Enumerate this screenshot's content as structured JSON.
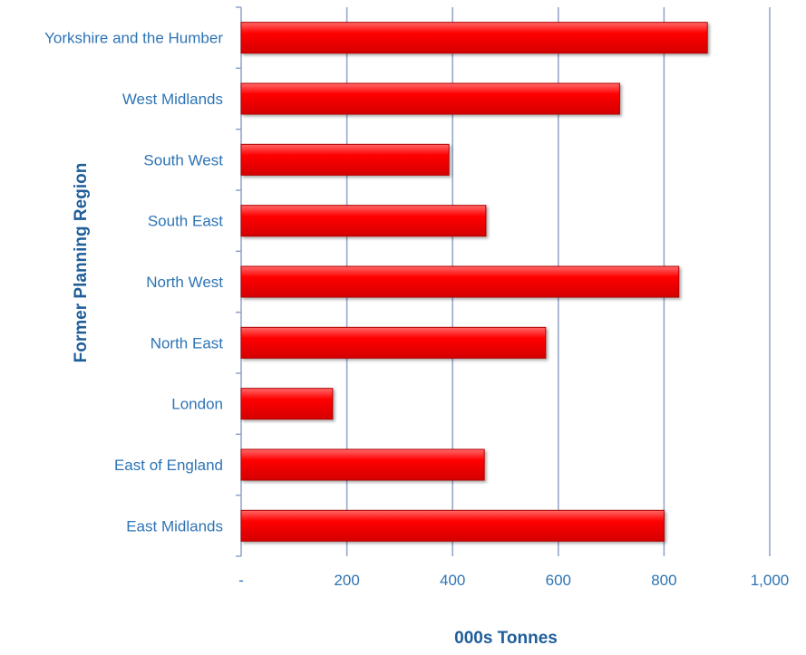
{
  "colors": {
    "bar_fill": "#ff0000",
    "bar_edge": "#b30000",
    "label": "#2e74b5",
    "title": "#1f5e99",
    "grid": "#8ea2c6",
    "axis": "#8ea2c6",
    "background": "#ffffff"
  },
  "chart_data": {
    "type": "bar",
    "orientation": "horizontal",
    "categories": [
      "Yorkshire and the Humber",
      "West Midlands",
      "South West",
      "South East",
      "North West",
      "North East",
      "London",
      "East of England",
      "East Midlands"
    ],
    "values": [
      882,
      716,
      393,
      463,
      828,
      576,
      173,
      460,
      800
    ],
    "xlabel": "000s Tonnes",
    "ylabel": "Former Planning Region",
    "xlim": [
      0,
      1000
    ],
    "xticks": [
      0,
      200,
      400,
      600,
      800,
      1000
    ],
    "xtick_labels": [
      "-",
      "200",
      "400",
      "600",
      "800",
      "1,000"
    ],
    "grid": "vertical",
    "legend": "none"
  }
}
